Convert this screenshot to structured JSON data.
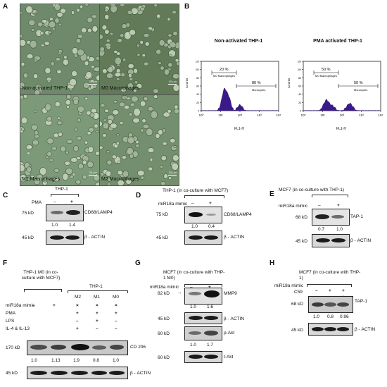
{
  "panel_a": {
    "letter": "A",
    "images": [
      {
        "label": "Non-activated THP-1",
        "scale": "20 µm"
      },
      {
        "label": "M0 Macrophages",
        "scale": "20 µm"
      },
      {
        "label": "M1 Macrophages",
        "scale": "20 µm"
      },
      {
        "label": "M2 Macrophages",
        "scale": "20 µm"
      }
    ]
  },
  "panel_b": {
    "letter": "B",
    "plots": [
      {
        "title": "Non-activated THP-1",
        "gate1_pct": "20 %",
        "gate1_label": "M0 Macrophages",
        "gate2_pct": "80 %",
        "gate2_label": "Monocytes"
      },
      {
        "title": "PMA activated THP-1",
        "gate1_pct": "50 %",
        "gate1_label": "M0 Macrophages",
        "gate2_pct": "50 %",
        "gate2_label": "Monocytes"
      }
    ],
    "ylabel": "Counts",
    "xlabel": "FL1-H",
    "yticks": [
      "0",
      "20",
      "40",
      "60",
      "80",
      "100",
      "120"
    ],
    "xticks": [
      "10⁰",
      "10¹",
      "10²",
      "10³",
      "10⁴"
    ]
  },
  "panel_c": {
    "letter": "C",
    "group": "THP-1",
    "row_label": "PMA",
    "conditions": [
      "–",
      "+"
    ],
    "mw1": "75 kD",
    "protein1": "CD68/LAMP4",
    "values": [
      "1.0",
      "1.4"
    ],
    "mw2": "45 kD",
    "protein2": "β - ACTIN"
  },
  "panel_d": {
    "letter": "D",
    "group": "THP-1 (in co-culture with MCF7)",
    "row_label": "miR18a mimic",
    "conditions": [
      "–",
      "+"
    ],
    "mw1": "75 kD",
    "protein1": "CD68/LAMP4",
    "values": [
      "1.0",
      "0.4"
    ],
    "mw2": "45 kD",
    "protein2": "β - ACTIN"
  },
  "panel_e": {
    "letter": "E",
    "group": "MCF7 (in co-culture with THP-1)",
    "row_label": "miR18a mimic",
    "conditions": [
      "–",
      "+"
    ],
    "mw1": "68 kD",
    "protein1": "TAP-1",
    "values": [
      "0.7",
      "1.0"
    ],
    "mw2": "45 kD",
    "protein2": "β - ACTIN"
  },
  "panel_f": {
    "letter": "F",
    "group1": "THP-1 M0 (in co-culture with MCF7)",
    "group2": "THP-1",
    "lane_headers": [
      "M2",
      "M1",
      "M0"
    ],
    "rows": [
      {
        "label": "miR18a mimic",
        "cells": [
          "–",
          "+",
          "×",
          "×",
          "×"
        ]
      },
      {
        "label": "PMA",
        "cells": [
          "",
          "",
          "+",
          "+",
          "+"
        ]
      },
      {
        "label": "LPS",
        "cells": [
          "",
          "",
          "–",
          "+",
          "–"
        ]
      },
      {
        "label": "IL-4 & IL-13",
        "cells": [
          "",
          "",
          "+",
          "–",
          "–"
        ]
      }
    ],
    "mw1": "170 kD",
    "protein1": "CD 206",
    "values": [
      "1.0",
      "1.13",
      "1.9",
      "0.8",
      "1.0"
    ],
    "mw2": "45 kD",
    "protein2": "β - ACTIN"
  },
  "panel_g": {
    "letter": "G",
    "group": "MCF7 (in co-culture with THP-1 M0)",
    "row_label": "miR18a mimic",
    "conditions": [
      "–",
      "+"
    ],
    "mw1": "82 kD",
    "protein1": "MMP9",
    "values1": [
      "1.0",
      "1.6"
    ],
    "mw2": "45 kD",
    "protein2": "β - ACTIN",
    "mw3": "60 kD",
    "protein3": "p-Akt",
    "values3": [
      "1.0",
      "1.7"
    ],
    "mw4": "60 kD",
    "protein4": "t-Akt"
  },
  "panel_h": {
    "letter": "H",
    "group": "MCF7 (in co-culture with THP-1)",
    "rows": [
      {
        "label": "miR18a mimic",
        "cells": [
          "–",
          "+",
          "+"
        ]
      },
      {
        "label": "C59",
        "cells": [
          "–",
          "–",
          "+"
        ]
      }
    ],
    "mw1": "68 kD",
    "protein1": "TAP-1",
    "values": [
      "1.0",
      "0.8",
      "0.96"
    ],
    "mw2": "45 kD",
    "protein2": "β - ACTIN"
  }
}
